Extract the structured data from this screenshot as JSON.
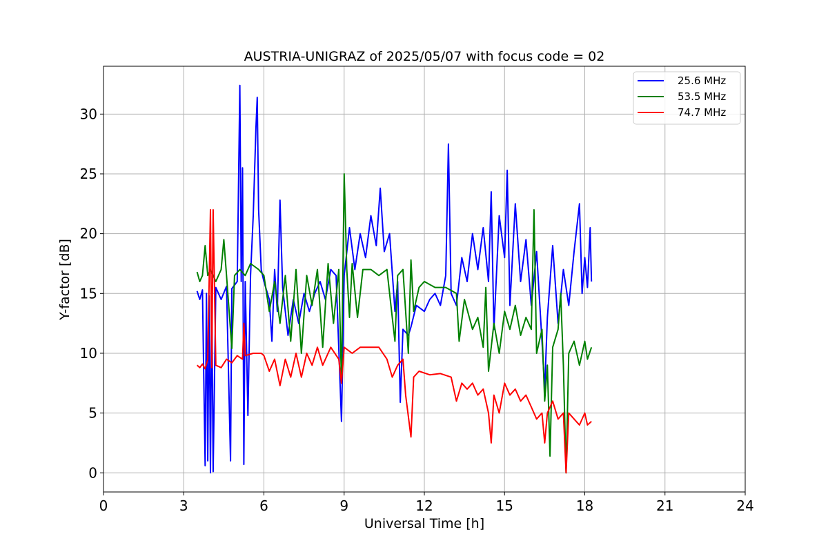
{
  "chart_data": {
    "type": "line",
    "title": "AUSTRIA-UNIGRAZ of 2025/05/07 with focus code = 02",
    "xlabel": "Universal Time [h]",
    "ylabel": "Y-factor [dB]",
    "xlim": [
      0,
      24
    ],
    "ylim": [
      -1.6,
      34.0
    ],
    "xticks": [
      0,
      3,
      6,
      9,
      12,
      15,
      18,
      21,
      24
    ],
    "yticks": [
      0,
      5,
      10,
      15,
      20,
      25,
      30
    ],
    "xtick_labels": [
      "0",
      "3",
      "6",
      "9",
      "12",
      "15",
      "18",
      "21",
      "24"
    ],
    "ytick_labels": [
      "0",
      "5",
      "10",
      "15",
      "20",
      "25",
      "30"
    ],
    "grid": true,
    "legend_position": "top-right",
    "series": [
      {
        "name": "25.6 MHz",
        "color": "#0000ff",
        "points": [
          [
            3.5,
            15.2
          ],
          [
            3.6,
            14.5
          ],
          [
            3.7,
            15.3
          ],
          [
            3.8,
            0.6
          ],
          [
            3.85,
            15.0
          ],
          [
            3.9,
            1.0
          ],
          [
            3.95,
            14.8
          ],
          [
            4.0,
            0.0
          ],
          [
            4.05,
            15.0
          ],
          [
            4.1,
            0.1
          ],
          [
            4.2,
            15.5
          ],
          [
            4.4,
            14.5
          ],
          [
            4.6,
            15.6
          ],
          [
            4.75,
            1.0
          ],
          [
            4.8,
            15.4
          ],
          [
            5.0,
            16.0
          ],
          [
            5.1,
            32.4
          ],
          [
            5.15,
            16.0
          ],
          [
            5.2,
            25.5
          ],
          [
            5.25,
            0.7
          ],
          [
            5.3,
            16.0
          ],
          [
            5.4,
            4.8
          ],
          [
            5.5,
            16.5
          ],
          [
            5.6,
            21.5
          ],
          [
            5.7,
            28.8
          ],
          [
            5.75,
            31.4
          ],
          [
            5.8,
            22.0
          ],
          [
            5.9,
            17.0
          ],
          [
            6.0,
            16.0
          ],
          [
            6.2,
            14.5
          ],
          [
            6.3,
            11.0
          ],
          [
            6.4,
            17.0
          ],
          [
            6.5,
            13.5
          ],
          [
            6.6,
            22.8
          ],
          [
            6.7,
            15.5
          ],
          [
            6.9,
            11.5
          ],
          [
            7.1,
            14.5
          ],
          [
            7.3,
            12.5
          ],
          [
            7.5,
            15.0
          ],
          [
            7.7,
            13.5
          ],
          [
            7.9,
            15.0
          ],
          [
            8.1,
            16.0
          ],
          [
            8.3,
            14.5
          ],
          [
            8.5,
            17.0
          ],
          [
            8.7,
            16.5
          ],
          [
            8.9,
            4.3
          ],
          [
            9.0,
            16.5
          ],
          [
            9.2,
            20.5
          ],
          [
            9.4,
            17.0
          ],
          [
            9.6,
            20.0
          ],
          [
            9.8,
            18.0
          ],
          [
            10.0,
            21.5
          ],
          [
            10.2,
            19.0
          ],
          [
            10.35,
            23.8
          ],
          [
            10.5,
            18.5
          ],
          [
            10.7,
            20.0
          ],
          [
            10.9,
            13.5
          ],
          [
            11.0,
            16.0
          ],
          [
            11.1,
            5.9
          ],
          [
            11.2,
            12.0
          ],
          [
            11.4,
            11.5
          ],
          [
            11.5,
            12.2
          ],
          [
            11.7,
            14.0
          ],
          [
            12.0,
            13.5
          ],
          [
            12.2,
            14.5
          ],
          [
            12.4,
            15.0
          ],
          [
            12.6,
            14.0
          ],
          [
            12.8,
            16.5
          ],
          [
            12.9,
            27.5
          ],
          [
            13.0,
            15.0
          ],
          [
            13.2,
            14.0
          ],
          [
            13.4,
            18.0
          ],
          [
            13.6,
            16.0
          ],
          [
            13.8,
            20.0
          ],
          [
            14.0,
            17.0
          ],
          [
            14.2,
            20.5
          ],
          [
            14.4,
            16.0
          ],
          [
            14.5,
            23.5
          ],
          [
            14.6,
            12.0
          ],
          [
            14.8,
            21.5
          ],
          [
            15.0,
            18.0
          ],
          [
            15.1,
            25.3
          ],
          [
            15.2,
            14.0
          ],
          [
            15.4,
            22.5
          ],
          [
            15.6,
            16.0
          ],
          [
            15.8,
            19.5
          ],
          [
            16.0,
            14.0
          ],
          [
            16.2,
            18.5
          ],
          [
            16.4,
            11.0
          ],
          [
            16.5,
            7.0
          ],
          [
            16.6,
            13.0
          ],
          [
            16.8,
            19.0
          ],
          [
            17.0,
            12.5
          ],
          [
            17.2,
            17.0
          ],
          [
            17.4,
            14.0
          ],
          [
            17.6,
            18.5
          ],
          [
            17.8,
            22.5
          ],
          [
            17.9,
            15.0
          ],
          [
            18.0,
            18.0
          ],
          [
            18.1,
            15.5
          ],
          [
            18.2,
            20.5
          ],
          [
            18.25,
            16.0
          ]
        ]
      },
      {
        "name": "53.5 MHz",
        "color": "#008000",
        "points": [
          [
            3.5,
            16.8
          ],
          [
            3.6,
            16.0
          ],
          [
            3.7,
            16.5
          ],
          [
            3.8,
            19.0
          ],
          [
            3.9,
            16.5
          ],
          [
            4.0,
            17.0
          ],
          [
            4.2,
            16.0
          ],
          [
            4.4,
            17.0
          ],
          [
            4.5,
            19.5
          ],
          [
            4.6,
            16.5
          ],
          [
            4.8,
            10.4
          ],
          [
            4.9,
            16.5
          ],
          [
            5.1,
            17.0
          ],
          [
            5.3,
            16.5
          ],
          [
            5.5,
            17.5
          ],
          [
            5.8,
            17.0
          ],
          [
            6.0,
            16.5
          ],
          [
            6.2,
            13.5
          ],
          [
            6.4,
            16.0
          ],
          [
            6.6,
            12.5
          ],
          [
            6.8,
            16.5
          ],
          [
            7.0,
            11.0
          ],
          [
            7.2,
            17.0
          ],
          [
            7.4,
            10.0
          ],
          [
            7.6,
            16.5
          ],
          [
            7.8,
            14.0
          ],
          [
            8.0,
            17.0
          ],
          [
            8.2,
            10.5
          ],
          [
            8.4,
            17.5
          ],
          [
            8.6,
            12.5
          ],
          [
            8.8,
            17.0
          ],
          [
            8.9,
            7.5
          ],
          [
            9.0,
            25.0
          ],
          [
            9.1,
            17.0
          ],
          [
            9.2,
            13.0
          ],
          [
            9.3,
            17.5
          ],
          [
            9.5,
            13.0
          ],
          [
            9.7,
            17.0
          ],
          [
            10.0,
            17.0
          ],
          [
            10.3,
            16.5
          ],
          [
            10.6,
            17.0
          ],
          [
            10.8,
            13.0
          ],
          [
            10.9,
            11.0
          ],
          [
            11.0,
            16.5
          ],
          [
            11.2,
            17.0
          ],
          [
            11.4,
            10.0
          ],
          [
            11.5,
            17.8
          ],
          [
            11.6,
            13.5
          ],
          [
            11.8,
            15.5
          ],
          [
            12.0,
            16.0
          ],
          [
            12.4,
            15.5
          ],
          [
            12.8,
            15.5
          ],
          [
            13.2,
            15.0
          ],
          [
            13.3,
            11.0
          ],
          [
            13.5,
            14.5
          ],
          [
            13.8,
            12.0
          ],
          [
            14.0,
            13.0
          ],
          [
            14.2,
            10.5
          ],
          [
            14.3,
            15.5
          ],
          [
            14.4,
            8.5
          ],
          [
            14.6,
            12.5
          ],
          [
            14.8,
            10.0
          ],
          [
            15.0,
            13.5
          ],
          [
            15.2,
            12.0
          ],
          [
            15.4,
            14.0
          ],
          [
            15.6,
            11.5
          ],
          [
            15.8,
            13.0
          ],
          [
            16.0,
            12.0
          ],
          [
            16.1,
            22.0
          ],
          [
            16.2,
            10.0
          ],
          [
            16.4,
            12.0
          ],
          [
            16.5,
            6.0
          ],
          [
            16.6,
            9.0
          ],
          [
            16.7,
            1.4
          ],
          [
            16.8,
            10.5
          ],
          [
            17.0,
            12.0
          ],
          [
            17.1,
            15.0
          ],
          [
            17.2,
            9.0
          ],
          [
            17.3,
            0.0
          ],
          [
            17.4,
            10.0
          ],
          [
            17.6,
            11.0
          ],
          [
            17.8,
            9.0
          ],
          [
            18.0,
            11.0
          ],
          [
            18.1,
            9.5
          ],
          [
            18.25,
            10.5
          ]
        ]
      },
      {
        "name": "74.7 MHz",
        "color": "#ff0000",
        "points": [
          [
            3.5,
            9.0
          ],
          [
            3.6,
            8.8
          ],
          [
            3.7,
            9.1
          ],
          [
            3.8,
            8.7
          ],
          [
            3.9,
            9.5
          ],
          [
            4.0,
            22.0
          ],
          [
            4.05,
            8.8
          ],
          [
            4.1,
            22.0
          ],
          [
            4.2,
            9.0
          ],
          [
            4.4,
            8.8
          ],
          [
            4.6,
            9.5
          ],
          [
            4.8,
            9.2
          ],
          [
            5.0,
            9.8
          ],
          [
            5.2,
            9.5
          ],
          [
            5.25,
            12.5
          ],
          [
            5.3,
            9.8
          ],
          [
            5.6,
            10.0
          ],
          [
            5.9,
            10.0
          ],
          [
            6.0,
            9.8
          ],
          [
            6.2,
            8.5
          ],
          [
            6.4,
            9.5
          ],
          [
            6.6,
            7.3
          ],
          [
            6.8,
            9.5
          ],
          [
            7.0,
            8.0
          ],
          [
            7.2,
            10.0
          ],
          [
            7.4,
            8.0
          ],
          [
            7.6,
            10.0
          ],
          [
            7.8,
            9.0
          ],
          [
            8.0,
            10.5
          ],
          [
            8.2,
            9.0
          ],
          [
            8.5,
            10.5
          ],
          [
            8.8,
            9.5
          ],
          [
            8.9,
            7.5
          ],
          [
            9.0,
            10.5
          ],
          [
            9.3,
            10.0
          ],
          [
            9.6,
            10.5
          ],
          [
            10.0,
            10.5
          ],
          [
            10.3,
            10.5
          ],
          [
            10.6,
            9.5
          ],
          [
            10.8,
            8.0
          ],
          [
            11.0,
            9.0
          ],
          [
            11.2,
            9.5
          ],
          [
            11.3,
            6.5
          ],
          [
            11.5,
            3.0
          ],
          [
            11.6,
            8.0
          ],
          [
            11.8,
            8.5
          ],
          [
            12.2,
            8.2
          ],
          [
            12.6,
            8.3
          ],
          [
            13.0,
            8.0
          ],
          [
            13.2,
            6.0
          ],
          [
            13.4,
            7.5
          ],
          [
            13.6,
            7.0
          ],
          [
            13.8,
            7.5
          ],
          [
            14.0,
            6.5
          ],
          [
            14.2,
            7.0
          ],
          [
            14.4,
            5.0
          ],
          [
            14.5,
            2.5
          ],
          [
            14.6,
            6.5
          ],
          [
            14.8,
            5.0
          ],
          [
            15.0,
            7.5
          ],
          [
            15.2,
            6.5
          ],
          [
            15.4,
            7.0
          ],
          [
            15.6,
            6.0
          ],
          [
            15.8,
            6.5
          ],
          [
            16.0,
            5.5
          ],
          [
            16.2,
            4.5
          ],
          [
            16.4,
            5.0
          ],
          [
            16.5,
            2.5
          ],
          [
            16.6,
            5.0
          ],
          [
            16.8,
            6.0
          ],
          [
            17.0,
            4.5
          ],
          [
            17.2,
            5.0
          ],
          [
            17.3,
            0.0
          ],
          [
            17.4,
            5.0
          ],
          [
            17.6,
            4.5
          ],
          [
            17.8,
            4.0
          ],
          [
            18.0,
            5.0
          ],
          [
            18.1,
            4.0
          ],
          [
            18.25,
            4.3
          ]
        ]
      }
    ]
  }
}
